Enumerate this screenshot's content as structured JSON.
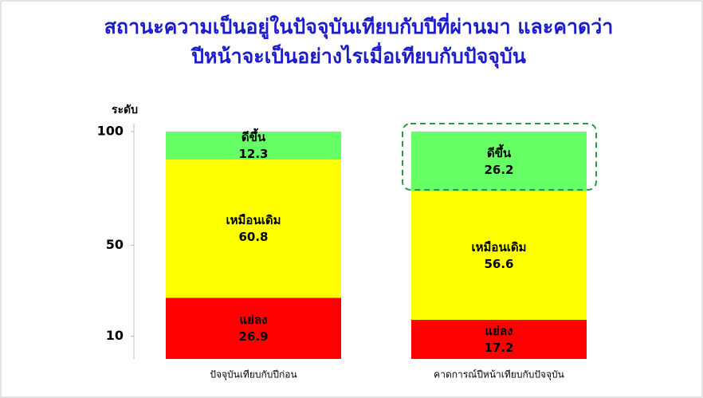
{
  "chart_data": {
    "type": "stacked_bar",
    "title_lines": [
      "สถานะความเป็นอยู่ในปัจจุบันเทียบกับปีที่ผ่านมา และคาดว่า",
      "ปีหน้าจะเป็นอย่างไรเมื่อเทียบกับปัจจุบัน"
    ],
    "y_label": "ระดับ",
    "categories": [
      "ปัจจุบันเทียบกับปีก่อน",
      "คาดการณ์ปีหน้าเทียบกับปัจจุบัน"
    ],
    "series": [
      {
        "name": "แย่ลง",
        "color": "#ff0000",
        "values": [
          26.9,
          17.2
        ]
      },
      {
        "name": "เหมือนเดิม",
        "color": "#ffff00",
        "values": [
          60.8,
          56.6
        ]
      },
      {
        "name": "ดีขึ้น",
        "color": "#66ff66",
        "values": [
          12.3,
          26.2
        ]
      }
    ],
    "ylim": [
      0,
      100
    ],
    "yticks": [
      10,
      50,
      100
    ]
  }
}
